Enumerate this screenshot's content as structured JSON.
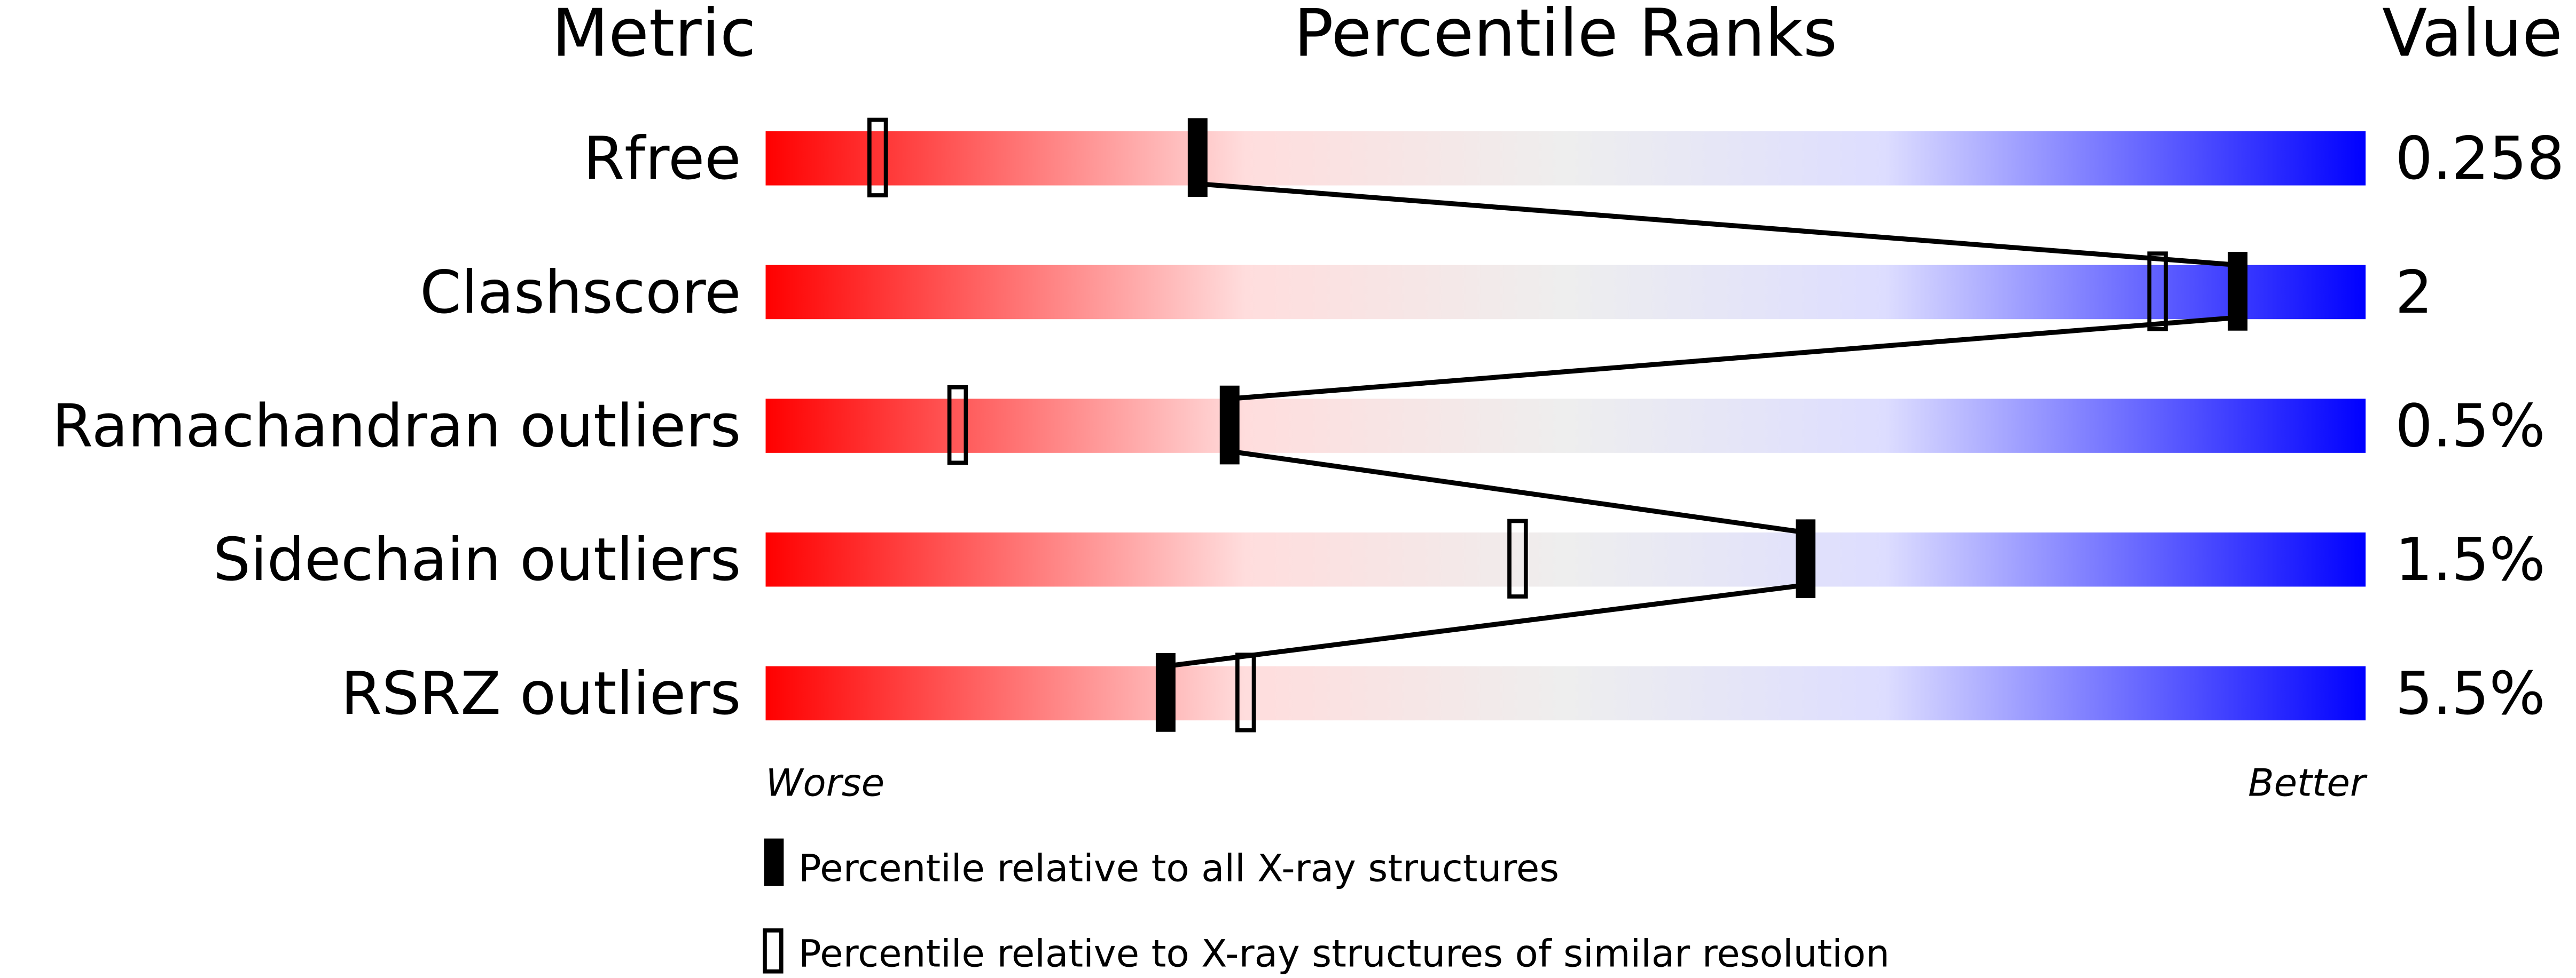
{
  "chart_data": {
    "type": "percentile-slider",
    "headers": {
      "metric": "Metric",
      "ranks": "Percentile Ranks",
      "value": "Value"
    },
    "axis": {
      "min": 0,
      "max": 100,
      "left_label": "Worse",
      "right_label": "Better"
    },
    "gradient_colors": [
      "#ff0000",
      "#ffdddd",
      "#eeeeee",
      "#ddddff",
      "#0000ff"
    ],
    "metrics": [
      {
        "name": "Rfree",
        "value": "0.258",
        "percentile_all": 27,
        "percentile_similar": 7
      },
      {
        "name": "Clashscore",
        "value": "2",
        "percentile_all": 92,
        "percentile_similar": 87
      },
      {
        "name": "Ramachandran outliers",
        "value": "0.5%",
        "percentile_all": 29,
        "percentile_similar": 12
      },
      {
        "name": "Sidechain outliers",
        "value": "1.5%",
        "percentile_all": 65,
        "percentile_similar": 47
      },
      {
        "name": "RSRZ outliers",
        "value": "5.5%",
        "percentile_all": 25,
        "percentile_similar": 30
      }
    ],
    "legend": [
      {
        "marker": "filled",
        "label": "Percentile relative to all X-ray structures"
      },
      {
        "marker": "open",
        "label": "Percentile relative to X-ray structures of similar resolution"
      }
    ]
  }
}
